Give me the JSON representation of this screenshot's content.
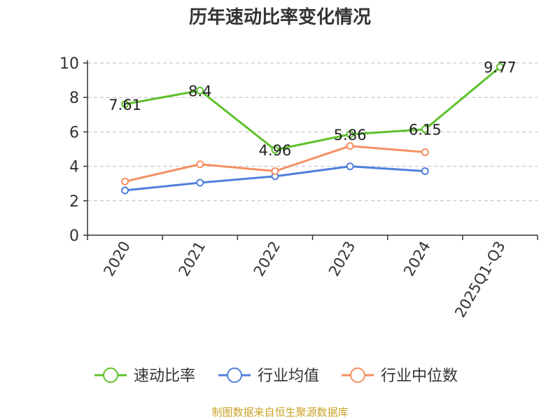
{
  "chart_data": {
    "type": "line",
    "title": "历年速动比率变化情况",
    "categories": [
      "2020",
      "2021",
      "2022",
      "2023",
      "2024",
      "2025Q1-Q3"
    ],
    "ylim": [
      0,
      10
    ],
    "yticks": [
      0,
      2,
      4,
      6,
      8,
      10
    ],
    "grid": true,
    "legend_position": "bottom",
    "series": [
      {
        "name": "速动比率",
        "color": "#5dc12b",
        "values": [
          7.61,
          8.4,
          4.96,
          5.86,
          6.15,
          9.77
        ],
        "labels": [
          "7.61",
          "8.4",
          "4.96",
          "5.86",
          "6.15",
          "9.77"
        ]
      },
      {
        "name": "行业均值",
        "color": "#4f7fd9",
        "values": [
          2.6,
          3.05,
          3.42,
          4.0,
          3.72,
          null
        ]
      },
      {
        "name": "行业中位数",
        "color": "#f39062",
        "values": [
          3.12,
          4.12,
          3.72,
          5.18,
          4.82,
          null
        ]
      }
    ],
    "source": "制图数据来自恒生聚源数据库"
  }
}
